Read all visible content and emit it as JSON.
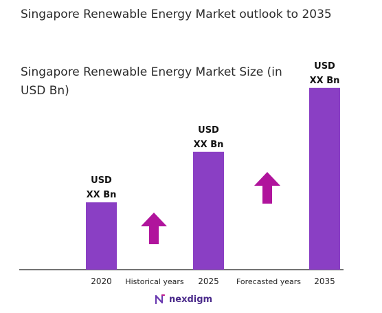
{
  "title": "Singapore Renewable Energy Market outlook to 2035",
  "chart_data": {
    "type": "bar",
    "title": "Singapore Renewable Energy Market outlook to 2035",
    "subtitle": "Singapore Renewable Energy Market Size (in USD Bn)",
    "categories": [
      "2020",
      "2025",
      "2035"
    ],
    "values": [
      1.0,
      1.75,
      2.7
    ],
    "data_labels": [
      [
        "USD",
        "XX Bn"
      ],
      [
        "USD",
        "XX Bn"
      ],
      [
        "USD",
        "XX Bn"
      ]
    ],
    "period_labels": [
      "Historical years",
      "Forecasted years"
    ],
    "ylim": [
      0,
      2.8
    ],
    "grid": false,
    "legend": "none",
    "bar_color": "#8a3fc4",
    "arrow_color": "#b0149c"
  },
  "brand": {
    "name": "nexdigm",
    "color": "#4a2a8a"
  }
}
